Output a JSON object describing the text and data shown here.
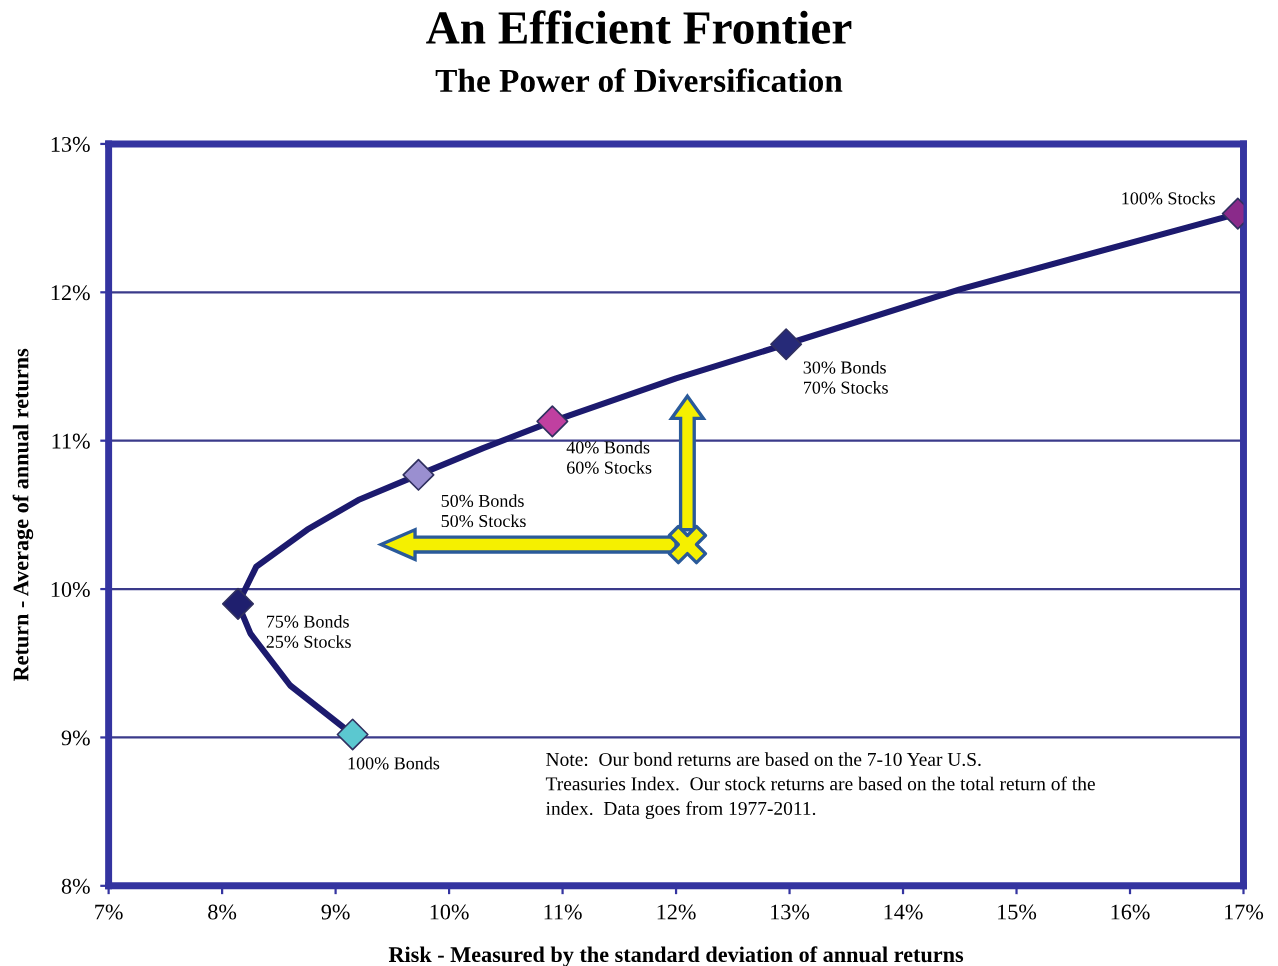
{
  "chart_data": {
    "type": "line",
    "title": "An Efficient Frontier",
    "subtitle": "The Power of Diversification",
    "xlabel": "Risk - Measured by the standard deviation of annual returns",
    "ylabel": "Return - Average of annual returns",
    "series": [
      {
        "color": "#1c1a6e",
        "marker": "none",
        "x": [
          9.15,
          8.6,
          8.25,
          8.14,
          8.3,
          8.75,
          9.2,
          9.73,
          10.3,
          10.91,
          12.0,
          12.97,
          14.5,
          16.95
        ],
        "values": [
          9.02,
          9.35,
          9.7,
          9.9,
          10.15,
          10.4,
          10.6,
          10.77,
          10.95,
          11.13,
          11.42,
          11.65,
          12.02,
          12.53
        ]
      },
      {
        "type": "scatter",
        "marker": "diamond",
        "x": [
          9.15,
          8.14,
          9.73,
          10.91,
          12.97,
          16.95
        ],
        "values": [
          9.02,
          9.9,
          10.77,
          11.13,
          11.65,
          12.53
        ],
        "colors": [
          "#5bc8d0",
          "#1f1f6e",
          "#9a8fd0",
          "#c040a0",
          "#262a78",
          "#8a2a8a"
        ]
      }
    ],
    "xlim": [
      7,
      17
    ],
    "ylim": [
      8,
      13
    ],
    "xticks": [
      {
        "value": 7,
        "label": "7%"
      },
      {
        "value": 8,
        "label": "8%"
      },
      {
        "value": 9,
        "label": "9%"
      },
      {
        "value": 10,
        "label": "10%"
      },
      {
        "value": 11,
        "label": "11%"
      },
      {
        "value": 12,
        "label": "12%"
      },
      {
        "value": 13,
        "label": "13%"
      },
      {
        "value": 14,
        "label": "14%"
      },
      {
        "value": 15,
        "label": "15%"
      },
      {
        "value": 16,
        "label": "16%"
      },
      {
        "value": 17,
        "label": "17%"
      }
    ],
    "yticks": [
      {
        "value": 8,
        "label": "8%"
      },
      {
        "value": 9,
        "label": "9%"
      },
      {
        "value": 10,
        "label": "10%"
      },
      {
        "value": 11,
        "label": "11%"
      },
      {
        "value": 12,
        "label": "12%"
      },
      {
        "value": 13,
        "label": "13%"
      }
    ],
    "grid": "y",
    "legend": false,
    "annotations": [
      {
        "text": "100% Bonds",
        "x": 9.15,
        "y": 9.02
      },
      {
        "text": "75% Bonds\n25% Stocks",
        "x": 8.14,
        "y": 9.9
      },
      {
        "text": "50% Bonds\n50% Stocks",
        "x": 9.73,
        "y": 10.77
      },
      {
        "text": "40% Bonds\n60% Stocks",
        "x": 10.91,
        "y": 11.13
      },
      {
        "text": "30% Bonds\n70% Stocks",
        "x": 12.97,
        "y": 11.65
      },
      {
        "text": "100% Stocks",
        "x": 16.95,
        "y": 12.53
      },
      "Note:  Our bond returns are based on the 7-10 Year U.S.\nTreasuries Index.  Our stock returns are based on the total return of the\nindex.  Data goes from 1977-2011."
    ]
  }
}
